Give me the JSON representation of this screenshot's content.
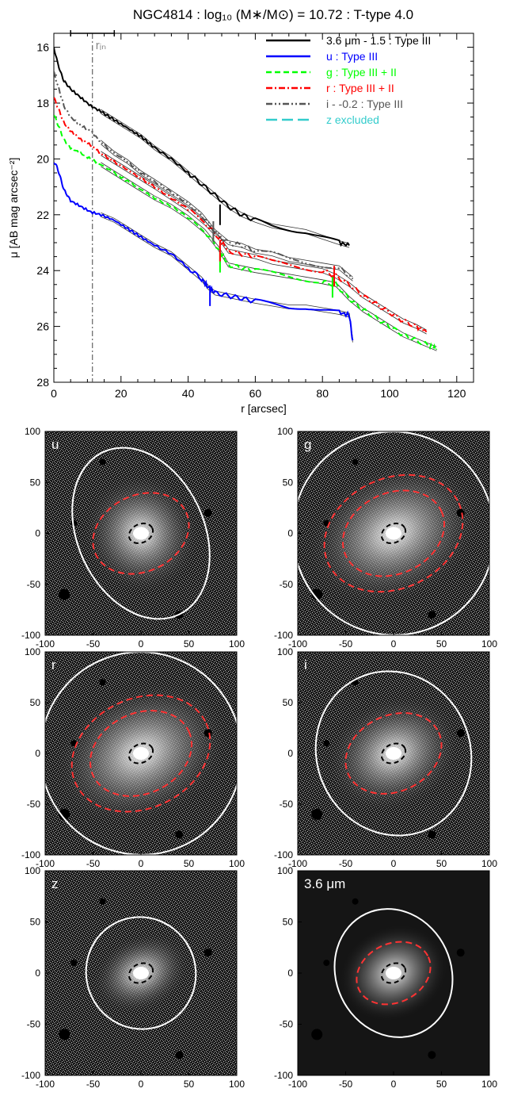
{
  "title": "NGC4814 : log₁₀ (M∗/M⊙) = 10.72 : T-type 4.0",
  "chart_data": [
    {
      "type": "line",
      "xlabel": "r [arcsec]",
      "ylabel": "μ [AB mag arcsec⁻²]",
      "xlim": [
        0,
        125
      ],
      "ylim": [
        28,
        15.5
      ],
      "y_inverted": true,
      "xticks": [
        "0",
        "20",
        "40",
        "60",
        "80",
        "100",
        "120"
      ],
      "yticks": [
        "16",
        "18",
        "20",
        "22",
        "24",
        "26",
        "28"
      ],
      "rin": {
        "label": "rᵢₙ",
        "value": 11.5,
        "bar": [
          5,
          18
        ]
      },
      "legend_position": "top-right",
      "series": [
        {
          "name": "3.6 μm - 1.5 : Type III",
          "color": "#000000",
          "style": "solid",
          "x": [
            0,
            1,
            2,
            3,
            5,
            8,
            11,
            14,
            18,
            22,
            26,
            30,
            35,
            40,
            44,
            48,
            52,
            56,
            60,
            65,
            70,
            75,
            80,
            85,
            88
          ],
          "y": [
            16.0,
            16.5,
            16.9,
            17.2,
            17.5,
            17.8,
            18.1,
            18.3,
            18.6,
            18.9,
            19.2,
            19.6,
            20.0,
            20.5,
            20.9,
            21.3,
            21.7,
            22.0,
            22.2,
            22.4,
            22.5,
            22.6,
            22.8,
            23.0,
            23.1
          ],
          "break": {
            "x": 49.5,
            "y": 22.0
          }
        },
        {
          "name": "u : Type III",
          "color": "#0000ff",
          "style": "solid",
          "x": [
            0,
            1,
            2,
            3,
            5,
            8,
            11,
            14,
            18,
            22,
            26,
            30,
            35,
            40,
            44,
            46,
            48,
            52,
            56,
            60,
            65,
            70,
            75,
            80,
            85,
            88,
            89
          ],
          "y": [
            20.1,
            20.3,
            20.7,
            21.1,
            21.5,
            21.7,
            21.9,
            22.0,
            22.2,
            22.5,
            22.8,
            23.1,
            23.4,
            23.9,
            24.3,
            24.6,
            24.8,
            24.9,
            25.0,
            25.1,
            25.2,
            25.3,
            25.3,
            25.4,
            25.5,
            25.6,
            26.5
          ],
          "break": {
            "x": 46.5,
            "y": 24.9
          }
        },
        {
          "name": "g : Type III + II",
          "color": "#00ff00",
          "style": "dashed",
          "x": [
            0,
            1,
            2,
            3,
            5,
            8,
            11,
            14,
            18,
            22,
            26,
            30,
            35,
            40,
            45,
            49,
            52,
            56,
            60,
            65,
            70,
            75,
            80,
            84,
            88,
            92,
            96,
            100,
            104,
            108,
            112,
            114
          ],
          "y": [
            18.4,
            18.7,
            19.0,
            19.3,
            19.6,
            19.8,
            20.0,
            20.2,
            20.5,
            20.8,
            21.1,
            21.4,
            21.7,
            22.1,
            22.6,
            23.2,
            23.8,
            23.9,
            24.0,
            24.1,
            24.2,
            24.3,
            24.4,
            24.5,
            25.0,
            25.4,
            25.7,
            26.0,
            26.3,
            26.5,
            26.7,
            26.8
          ],
          "breaks": [
            {
              "x": 49.5,
              "y": 23.7
            },
            {
              "x": 83,
              "y": 24.6
            }
          ]
        },
        {
          "name": "r : Type III + II",
          "color": "#ff0000",
          "style": "dashdot",
          "x": [
            0,
            1,
            2,
            3,
            5,
            8,
            11,
            14,
            18,
            22,
            26,
            30,
            35,
            40,
            45,
            49,
            52,
            56,
            60,
            65,
            70,
            75,
            80,
            84,
            88,
            92,
            96,
            100,
            104,
            108,
            111
          ],
          "y": [
            17.8,
            18.1,
            18.4,
            18.7,
            19.0,
            19.3,
            19.5,
            19.8,
            20.1,
            20.4,
            20.7,
            21.0,
            21.4,
            21.8,
            22.3,
            22.8,
            23.3,
            23.4,
            23.5,
            23.7,
            23.8,
            23.9,
            24.0,
            24.2,
            24.5,
            24.9,
            25.2,
            25.5,
            25.8,
            26.0,
            26.2
          ],
          "breaks": [
            {
              "x": 49.5,
              "y": 23.3
            },
            {
              "x": 83.5,
              "y": 24.2
            }
          ]
        },
        {
          "name": "i - -0.2 : Type III",
          "color": "#555555",
          "style": "dashdotdot",
          "x": [
            0,
            1,
            2,
            3,
            5,
            8,
            11,
            14,
            18,
            22,
            26,
            30,
            35,
            40,
            44,
            48,
            52,
            56,
            60,
            65,
            70,
            75,
            80,
            85,
            89
          ],
          "y": [
            16.9,
            17.3,
            17.7,
            18.1,
            18.5,
            18.8,
            19.0,
            19.4,
            19.8,
            20.1,
            20.5,
            20.8,
            21.2,
            21.6,
            22.0,
            22.6,
            23.0,
            23.1,
            23.3,
            23.4,
            23.6,
            23.7,
            23.8,
            23.9,
            24.3
          ],
          "break": {
            "x": 47.5,
            "y": 22.6
          }
        },
        {
          "name": "z excluded",
          "color": "#33cccc",
          "style": "longdash",
          "x": [],
          "y": []
        }
      ]
    }
  ],
  "panels": [
    {
      "label": "u"
    },
    {
      "label": "g"
    },
    {
      "label": "r"
    },
    {
      "label": "i"
    },
    {
      "label": "z"
    },
    {
      "label": "3.6 μm"
    }
  ],
  "panel_axis_ticks": [
    "-100",
    "-50",
    "0",
    "50",
    "100"
  ],
  "panel_axis_range": [
    -100,
    100
  ],
  "panel_ellipses": [
    {
      "white": [
        66,
        88
      ],
      "red": [
        null,
        52
      ],
      "black": 13
    },
    {
      "white": [
        105,
        100
      ],
      "red": [
        75,
        55
      ],
      "black": 13
    },
    {
      "white": [
        105,
        100
      ],
      "red": [
        75,
        55
      ],
      "black": 13
    },
    {
      "white": [
        80,
        82
      ],
      "red": [
        null,
        52
      ],
      "black": 13
    },
    {
      "white": [
        57,
        55
      ],
      "red": [
        null,
        null
      ],
      "black": 13
    },
    {
      "white": [
        60,
        64
      ],
      "red": [
        null,
        40
      ],
      "black": 13
    }
  ]
}
